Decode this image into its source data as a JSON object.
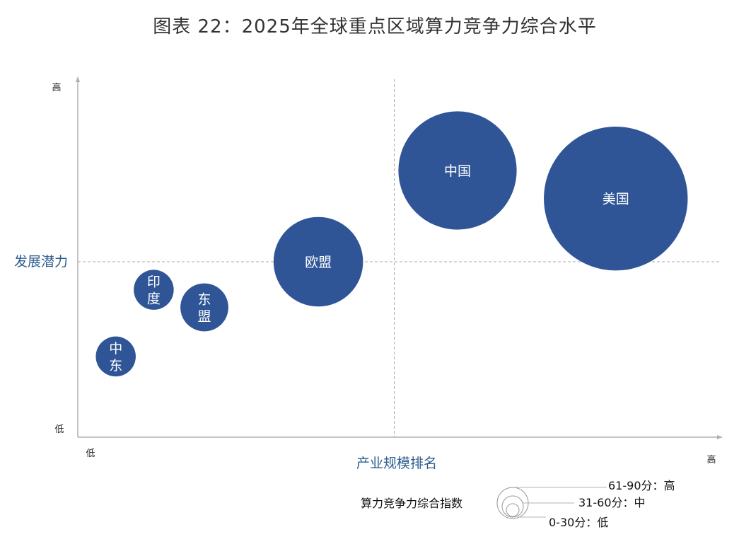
{
  "title": "图表 22：2025年全球重点区域算力竞争力综合水平",
  "chart_data": {
    "type": "scatter",
    "variant": "bubble",
    "xlabel": "产业规模排名",
    "ylabel": "发展潜力",
    "x_ticks": {
      "low": "低",
      "high": "高"
    },
    "y_ticks": {
      "low": "低",
      "high": "高"
    },
    "xlim": [
      0,
      100
    ],
    "ylim": [
      0,
      100
    ],
    "grid": false,
    "quadrant_lines": {
      "x": 50,
      "y": 50
    },
    "bubble_color": "#2f5597",
    "points": [
      {
        "label": "美国",
        "x": 85,
        "y": 68,
        "size": 90
      },
      {
        "label": "中国",
        "x": 60,
        "y": 76,
        "size": 74
      },
      {
        "label": "欧盟",
        "x": 38,
        "y": 50,
        "size": 56
      },
      {
        "label": "东盟",
        "x": 20,
        "y": 37,
        "size": 30
      },
      {
        "label": "印度",
        "x": 12,
        "y": 42,
        "size": 25
      },
      {
        "label": "中东",
        "x": 6,
        "y": 23,
        "size": 25
      }
    ]
  },
  "legend": {
    "title": "算力竞争力综合指数",
    "items": [
      {
        "label": "61-90分：高"
      },
      {
        "label": "31-60分：中"
      },
      {
        "label": "0-30分：低"
      }
    ]
  }
}
